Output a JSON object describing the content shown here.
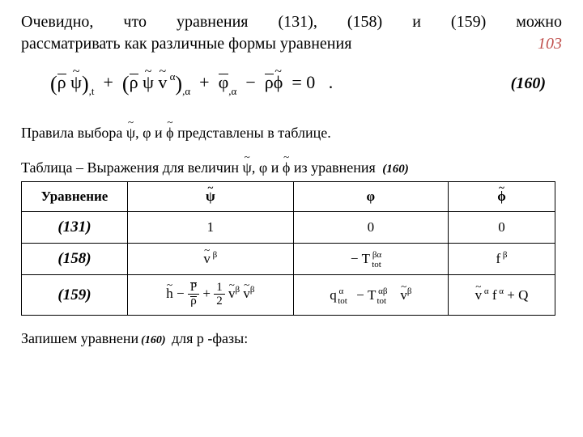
{
  "intro": {
    "line1_parts": [
      "Очевидно,",
      "что",
      "уравнения",
      "(131),",
      "(158)",
      "и",
      "(159)",
      "можно"
    ],
    "line2_left": "рассматривать как различные формы уравнения",
    "pagenum": "103"
  },
  "equation": {
    "ref": "(160)"
  },
  "sentence2": {
    "prefix": "Правила выбора ",
    "mid1": ", ",
    "mid2": " и ",
    "suffix": " представлены в таблице."
  },
  "table_title": {
    "prefix": "Таблица  –  Выражения для величин ",
    "mid1": ", ",
    "mid2": " и ",
    "suffix": " из уравнения",
    "ref": "(160)"
  },
  "table": {
    "headers": {
      "c0": "Уравнение",
      "c1": "ψ",
      "c2": "φ",
      "c3": "ϕ"
    },
    "rows": [
      {
        "ref": "(131)",
        "c1_text": "1",
        "c2_text": "0",
        "c3_text": "0"
      },
      {
        "ref": "(158)"
      },
      {
        "ref": "(159)"
      }
    ]
  },
  "final": {
    "prefix": "Запишем уравнени",
    "ref": "(160)",
    "suffix": "для  p -фазы:"
  },
  "style": {
    "accent_color": "#c0504d"
  }
}
